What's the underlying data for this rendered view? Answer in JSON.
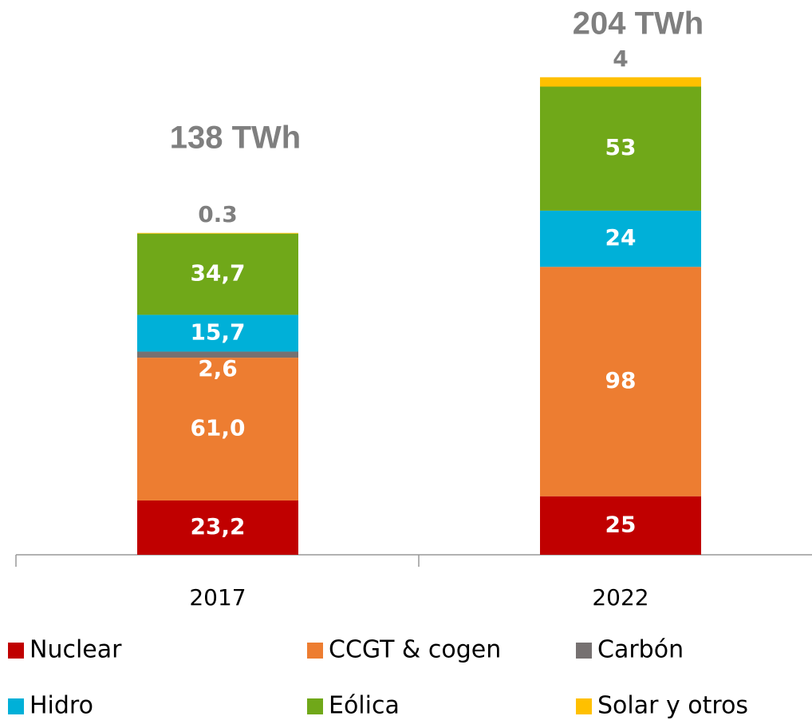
{
  "chart_data": {
    "type": "stacked_bar",
    "categories": [
      "2017",
      "2022"
    ],
    "series": [
      {
        "name": "Nuclear",
        "color": "#c00000",
        "values": [
          23.2,
          25
        ],
        "value_labels": [
          "23,2",
          "25"
        ]
      },
      {
        "name": "CCGT & cogen",
        "color": "#ed7d31",
        "values": [
          61.0,
          98
        ],
        "value_labels": [
          "61,0",
          "98"
        ]
      },
      {
        "name": "Carbón",
        "color": "#767171",
        "values": [
          2.6,
          null
        ],
        "value_labels": [
          "2,6",
          null
        ]
      },
      {
        "name": "Hidro",
        "color": "#00b0d8",
        "values": [
          15.7,
          24
        ],
        "value_labels": [
          "15,7",
          "24"
        ]
      },
      {
        "name": "Eólica",
        "color": "#70a819",
        "values": [
          34.7,
          53
        ],
        "value_labels": [
          "34,7",
          "53"
        ]
      },
      {
        "name": "Solar y otros",
        "color": "#ffc000",
        "values": [
          0.3,
          4
        ],
        "value_labels": [
          "0.3",
          "4"
        ]
      }
    ],
    "total_labels": [
      "138 TWh",
      "204 TWh"
    ],
    "ylim": [
      0,
      237
    ]
  }
}
